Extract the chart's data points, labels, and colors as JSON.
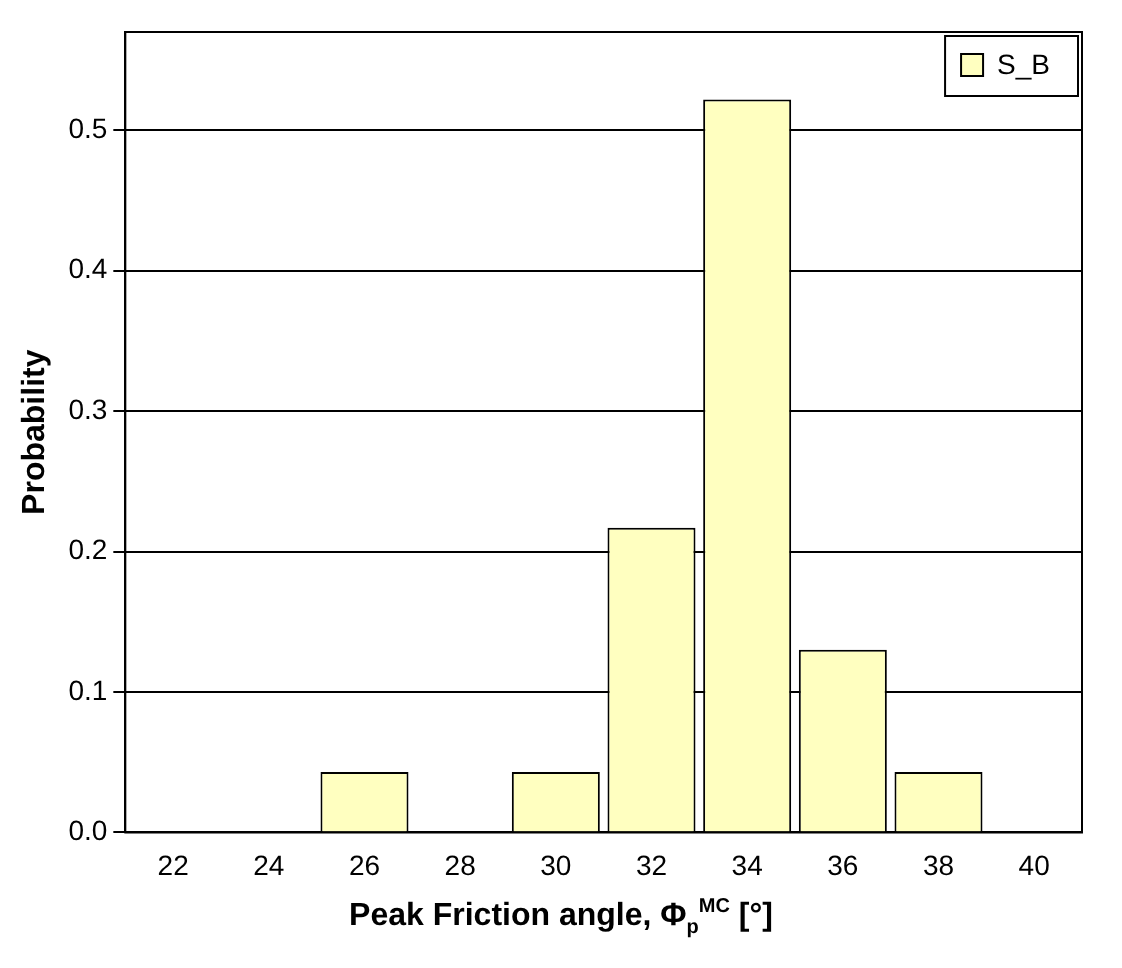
{
  "chart_data": {
    "type": "bar",
    "xlabel": "Peak Friction angle, Φ$_{p}$$^{MC}$ [°]",
    "ylabel": "Probability",
    "categories": [
      "22",
      "24",
      "26",
      "28",
      "30",
      "32",
      "34",
      "36",
      "38",
      "40"
    ],
    "series": [
      {
        "name": "S_B",
        "color": "#ffffc0",
        "values": [
          0,
          0,
          0.043,
          0,
          0.043,
          0.217,
          0.522,
          0.13,
          0.043,
          0
        ]
      }
    ],
    "ylim": [
      0,
      0.57
    ],
    "yticks": [
      {
        "value": 0,
        "label": "0.0"
      },
      0.1,
      0.2,
      0.3,
      0.4,
      0.5
    ],
    "grid": "y",
    "legend": "top right"
  }
}
